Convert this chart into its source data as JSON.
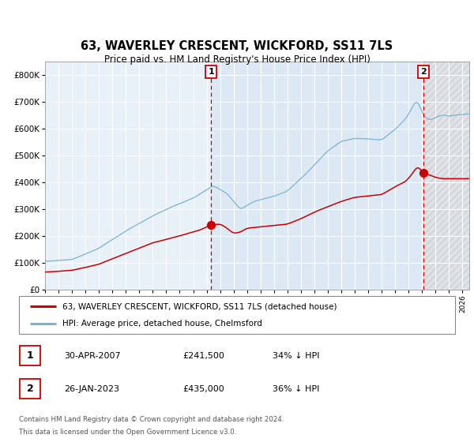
{
  "title": "63, WAVERLEY CRESCENT, WICKFORD, SS11 7LS",
  "subtitle": "Price paid vs. HM Land Registry's House Price Index (HPI)",
  "transaction1": {
    "date": "30-APR-2007",
    "price": 241500,
    "pct": "34%",
    "dir": "↓",
    "label": "1"
  },
  "transaction2": {
    "date": "26-JAN-2023",
    "price": 435000,
    "pct": "36%",
    "dir": "↓",
    "label": "2"
  },
  "legend_line1": "63, WAVERLEY CRESCENT, WICKFORD, SS11 7LS (detached house)",
  "legend_line2": "HPI: Average price, detached house, Chelmsford",
  "footer1": "Contains HM Land Registry data © Crown copyright and database right 2024.",
  "footer2": "This data is licensed under the Open Government Licence v3.0.",
  "hpi_color": "#7ab3d4",
  "price_color": "#cc0000",
  "plot_bg": "#e8f0f8",
  "grid_color": "#ffffff",
  "vline_color": "#cc0000",
  "marker_color": "#cc0000",
  "ylim_min": 0,
  "ylim_max": 850000,
  "yticks": [
    0,
    100000,
    200000,
    300000,
    400000,
    500000,
    600000,
    700000,
    800000
  ],
  "ytick_labels": [
    "£0",
    "£100K",
    "£200K",
    "£300K",
    "£400K",
    "£500K",
    "£600K",
    "£700K",
    "£800K"
  ],
  "year_start": 1995,
  "year_end": 2026,
  "t1_year": 2007.33,
  "t2_year": 2023.08,
  "xstart": 1995,
  "xend": 2026.5
}
